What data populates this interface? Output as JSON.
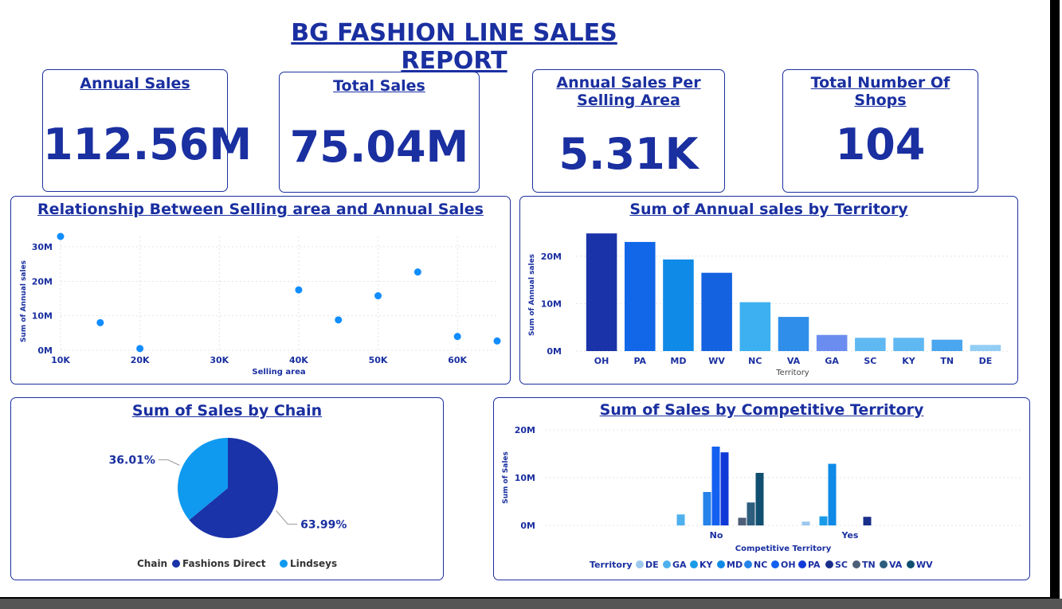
{
  "report": {
    "title": "BG FASHION LINE SALES REPORT"
  },
  "kpis": [
    {
      "label": "Annual Sales",
      "value": "112.56M"
    },
    {
      "label": "Total Sales",
      "value": "75.04M"
    },
    {
      "label": "Annual Sales Per Selling Area",
      "value": "5.31K"
    },
    {
      "label": "Total Number Of Shops",
      "value": "104"
    }
  ],
  "colors": {
    "primary": "#1a2fa0",
    "accent": "#118dff"
  },
  "chart_data": [
    {
      "type": "scatter",
      "title": "Relationship Between Selling area and Annual Sales",
      "xlabel": "Selling area",
      "ylabel": "Sum of Annual sales",
      "xlim": [
        10000,
        65000
      ],
      "ylim": [
        0,
        33000000
      ],
      "xticks": [
        "10K",
        "20K",
        "30K",
        "40K",
        "50K",
        "60K"
      ],
      "yticks": [
        "0M",
        "10M",
        "20M",
        "30M"
      ],
      "points": [
        {
          "x": 10000,
          "y": 33000000
        },
        {
          "x": 15000,
          "y": 8000000
        },
        {
          "x": 20000,
          "y": 500000
        },
        {
          "x": 40000,
          "y": 17500000
        },
        {
          "x": 45000,
          "y": 8800000
        },
        {
          "x": 50000,
          "y": 15800000
        },
        {
          "x": 55000,
          "y": 22700000
        },
        {
          "x": 60000,
          "y": 4000000
        },
        {
          "x": 65000,
          "y": 2700000
        }
      ],
      "color": "#118dff"
    },
    {
      "type": "bar",
      "title": "Sum of Annual sales by Territory",
      "xlabel": "Territory",
      "ylabel": "Sum of Annual sales",
      "ylim": [
        0,
        25000000
      ],
      "yticks": [
        "0M",
        "10M",
        "20M"
      ],
      "categories": [
        "OH",
        "PA",
        "MD",
        "WV",
        "NC",
        "VA",
        "GA",
        "SC",
        "KY",
        "TN",
        "DE"
      ],
      "values": [
        24800000,
        23000000,
        19300000,
        16500000,
        10300000,
        7200000,
        3400000,
        2800000,
        2800000,
        2400000,
        1300000
      ],
      "colors": [
        "#1a33a8",
        "#1167e8",
        "#0f8ae6",
        "#1462e0",
        "#3cb0f0",
        "#2f8eea",
        "#6b8df0",
        "#5fb8f2",
        "#5fb8f2",
        "#4aa6ee",
        "#92cdf4"
      ]
    },
    {
      "type": "pie",
      "title": "Sum of Sales by Chain",
      "legend_title": "Chain",
      "slices": [
        {
          "name": "Fashions Direct",
          "value": 63.99,
          "label": "63.99%",
          "color": "#1a33a8"
        },
        {
          "name": "Lindseys",
          "value": 36.01,
          "label": "36.01%",
          "color": "#0f9af0"
        }
      ]
    },
    {
      "type": "bar",
      "title": "Sum of Sales by Competitive Territory",
      "xlabel": "Competitive Territory",
      "ylabel": "Sum of Sales",
      "ylim": [
        0,
        20000000
      ],
      "yticks": [
        "0M",
        "10M",
        "20M"
      ],
      "categories": [
        "No",
        "Yes"
      ],
      "legend_title": "Territory",
      "series": [
        {
          "name": "DE",
          "color": "#9cc8ee",
          "values": [
            0,
            800000
          ]
        },
        {
          "name": "GA",
          "color": "#4fb0ee",
          "values": [
            2300000,
            0
          ]
        },
        {
          "name": "KY",
          "color": "#1a9be8",
          "values": [
            0,
            1900000
          ]
        },
        {
          "name": "MD",
          "color": "#0f8ae6",
          "values": [
            0,
            12900000
          ]
        },
        {
          "name": "NC",
          "color": "#2683ea",
          "values": [
            7000000,
            0
          ]
        },
        {
          "name": "OH",
          "color": "#1460f0",
          "values": [
            16500000,
            0
          ]
        },
        {
          "name": "PA",
          "color": "#103ad8",
          "values": [
            15300000,
            0
          ]
        },
        {
          "name": "SC",
          "color": "#1a2f8a",
          "values": [
            0,
            1800000
          ]
        },
        {
          "name": "TN",
          "color": "#4e5f78",
          "values": [
            1600000,
            0
          ]
        },
        {
          "name": "VA",
          "color": "#2e5e7e",
          "values": [
            4800000,
            0
          ]
        },
        {
          "name": "WV",
          "color": "#114f70",
          "values": [
            11000000,
            0
          ]
        }
      ]
    }
  ]
}
